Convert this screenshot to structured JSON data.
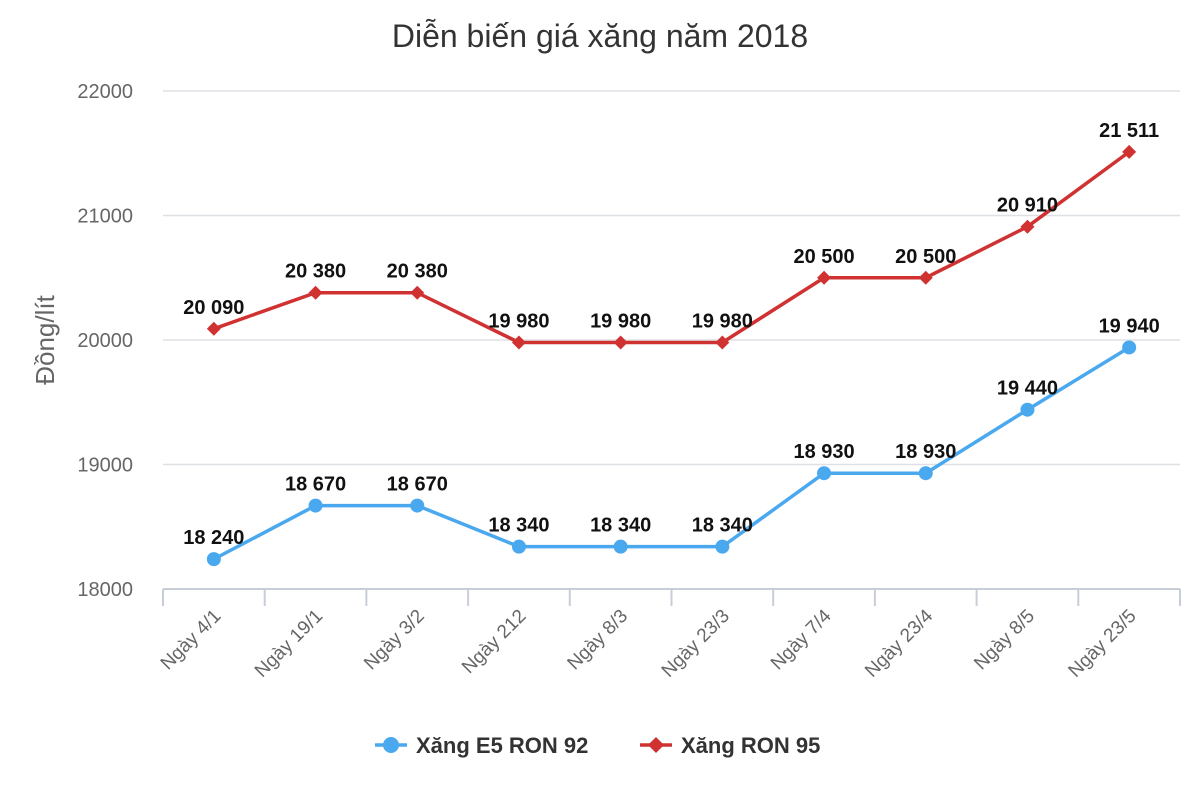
{
  "chart_data": {
    "type": "line",
    "title": "Diễn biến giá xăng năm 2018",
    "xlabel": "",
    "ylabel": "Đồng/lít",
    "ylim": [
      18000,
      22000
    ],
    "yticks": [
      18000,
      19000,
      20000,
      21000,
      22000
    ],
    "grid": true,
    "legend_position": "bottom",
    "categories": [
      "Ngày 4/1",
      "Ngày 19/1",
      "Ngày 3/2",
      "Ngày 212",
      "Ngày 8/3",
      "Ngày 23/3",
      "Ngày 7/4",
      "Ngày 23/4",
      "Ngày 8/5",
      "Ngày 23/5"
    ],
    "series": [
      {
        "name": "Xăng E5 RON 92",
        "color": "#4aa8ef",
        "marker": "circle",
        "values": [
          18240,
          18670,
          18670,
          18340,
          18340,
          18340,
          18930,
          18930,
          19440,
          19940
        ],
        "labels": [
          "18 240",
          "18 670",
          "18 670",
          "18 340",
          "18 340",
          "18 340",
          "18 930",
          "18 930",
          "19 440",
          "19 940"
        ]
      },
      {
        "name": "Xăng RON 95",
        "color": "#d03232",
        "marker": "diamond",
        "values": [
          20090,
          20380,
          20380,
          19980,
          19980,
          19980,
          20500,
          20500,
          20910,
          21511
        ],
        "labels": [
          "20 090",
          "20 380",
          "20 380",
          "19 980",
          "19 980",
          "19 980",
          "20 500",
          "20 500",
          "20 910",
          "21 511"
        ]
      }
    ]
  }
}
